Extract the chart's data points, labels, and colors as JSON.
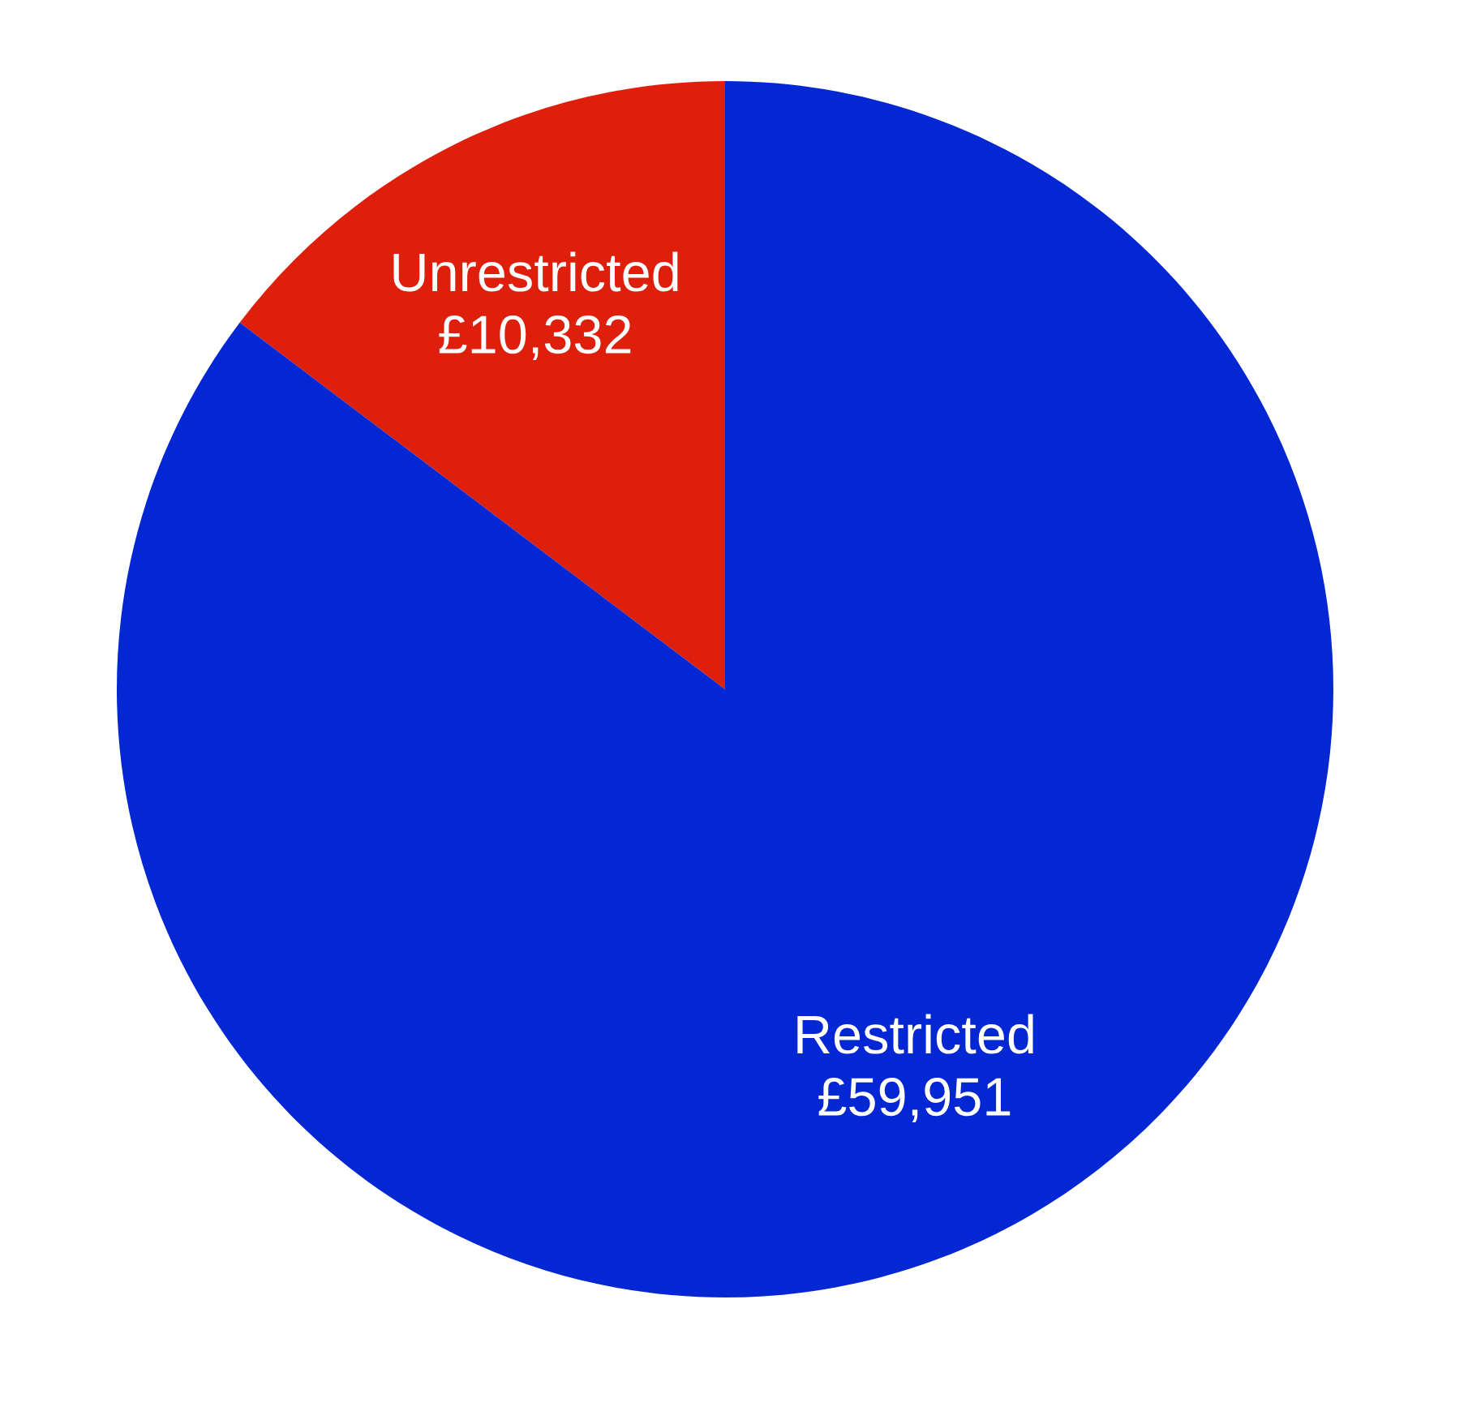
{
  "chart_data": {
    "type": "pie",
    "categories": [
      "Unrestricted",
      "Restricted"
    ],
    "values": [
      10332,
      59951
    ],
    "value_labels": [
      "£10,332",
      "£59,951"
    ],
    "colors": [
      "#de1f0b",
      "#0427d4"
    ]
  }
}
